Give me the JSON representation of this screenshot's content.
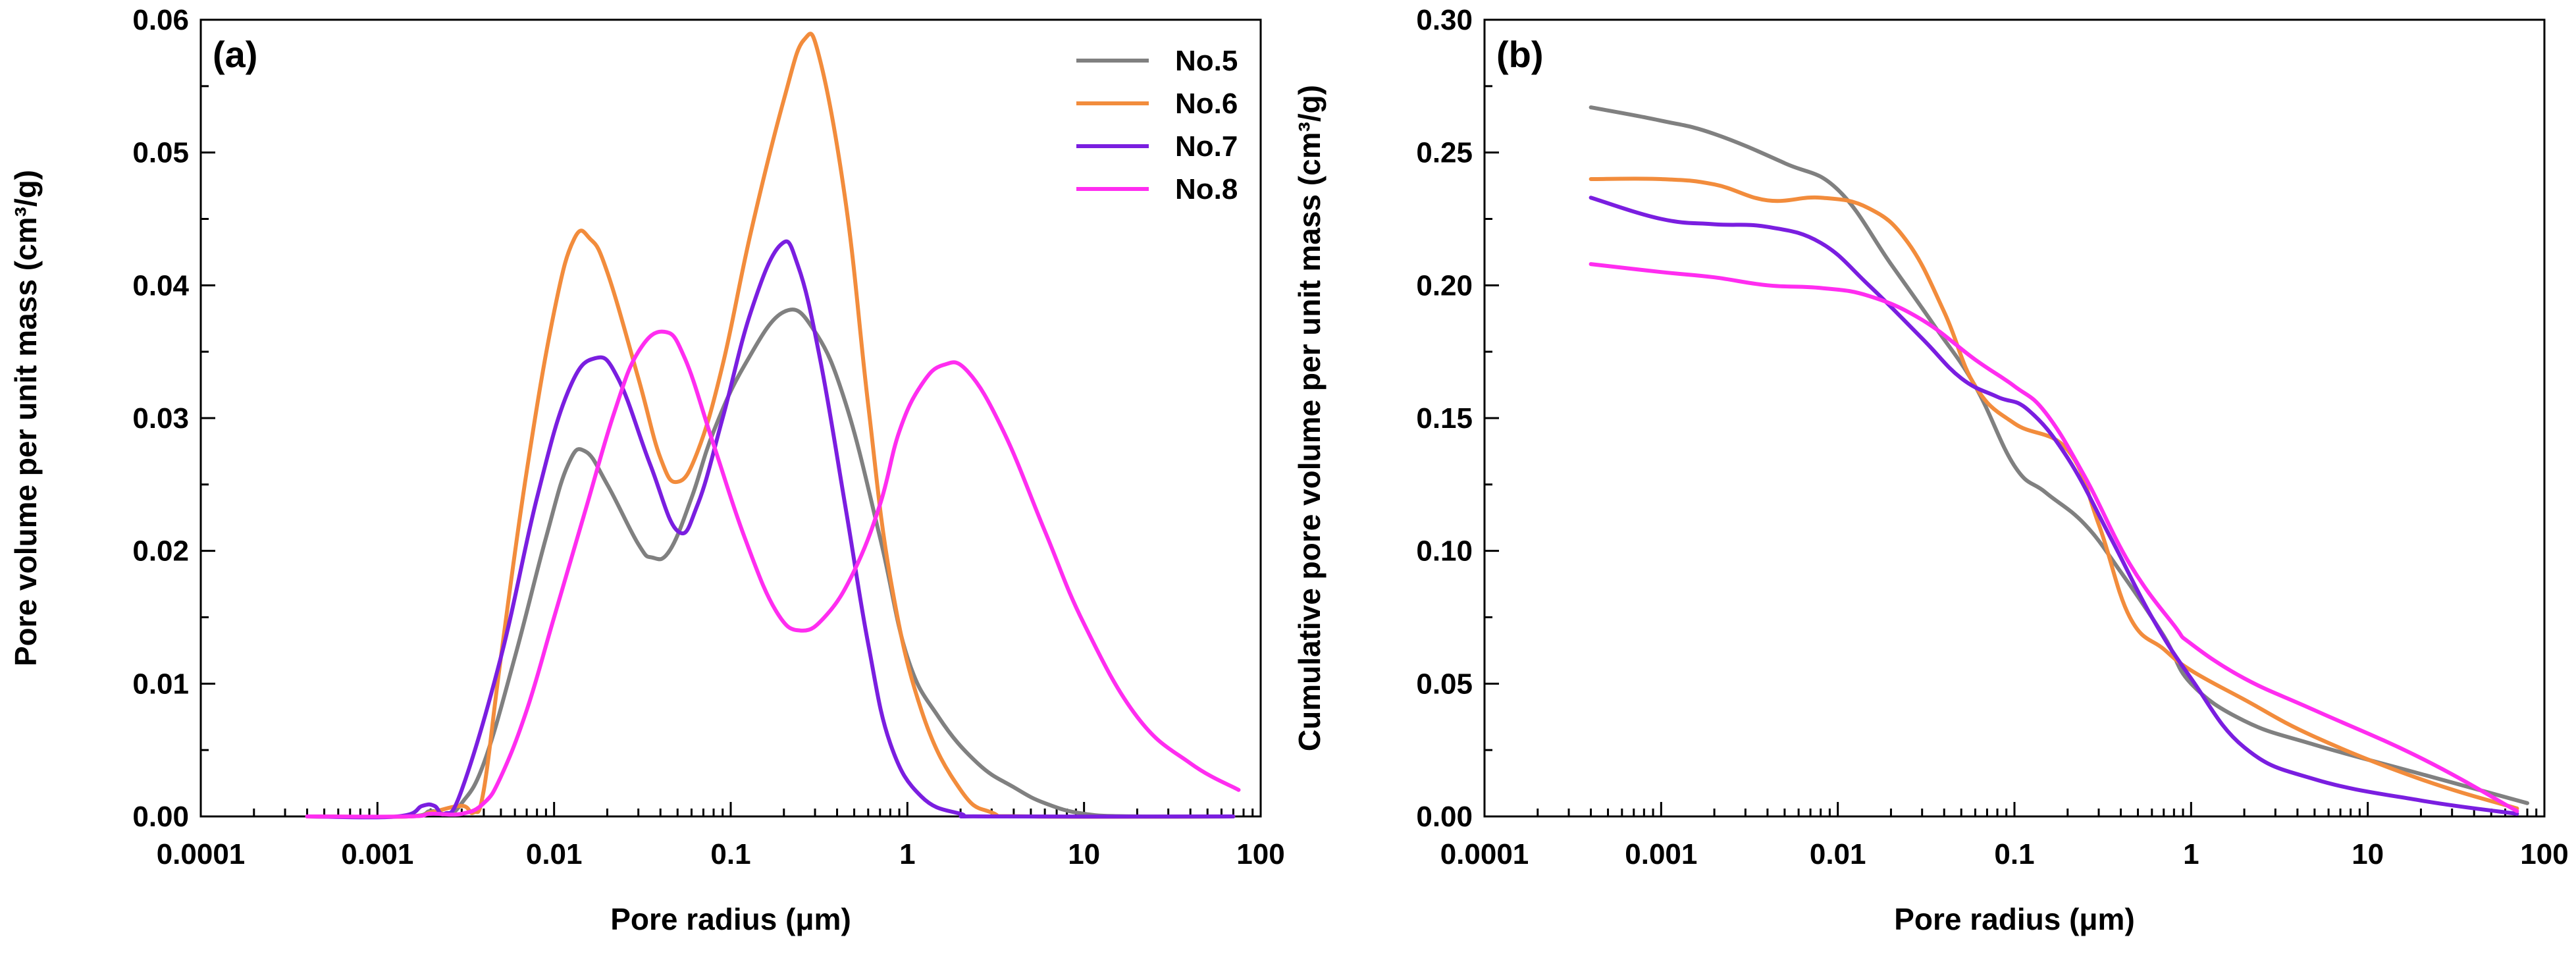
{
  "chart_data": [
    {
      "type": "line",
      "panel_label": "(a)",
      "title": "",
      "xlabel": "Pore radius (μm)",
      "ylabel": "Pore volume per unit mass (cm³/g)",
      "xscale": "log",
      "xlim": [
        0.0001,
        100
      ],
      "ylim": [
        0,
        0.06
      ],
      "x_ticks": [
        0.0001,
        0.001,
        0.01,
        0.1,
        1,
        10,
        100
      ],
      "x_tick_labels": [
        "0.0001",
        "0.001",
        "0.01",
        "0.1",
        "1",
        "10",
        "100"
      ],
      "y_ticks": [
        0,
        0.01,
        0.02,
        0.03,
        0.04,
        0.05,
        0.06
      ],
      "y_tick_labels": [
        "0.00",
        "0.01",
        "0.02",
        "0.03",
        "0.04",
        "0.05",
        "0.06"
      ],
      "legend": {
        "position": "top-right",
        "entries": [
          "No.5",
          "No.6",
          "No.7",
          "No.8"
        ]
      },
      "series": [
        {
          "name": "No.5",
          "color": "#808080",
          "points": [
            [
              0.0004,
              0
            ],
            [
              0.0015,
              0
            ],
            [
              0.002,
              0.0004
            ],
            [
              0.0025,
              0.0002
            ],
            [
              0.003,
              0.001
            ],
            [
              0.004,
              0.004
            ],
            [
              0.006,
              0.012
            ],
            [
              0.009,
              0.021
            ],
            [
              0.012,
              0.0265
            ],
            [
              0.015,
              0.0275
            ],
            [
              0.02,
              0.025
            ],
            [
              0.03,
              0.0205
            ],
            [
              0.036,
              0.0195
            ],
            [
              0.045,
              0.02
            ],
            [
              0.06,
              0.024
            ],
            [
              0.08,
              0.029
            ],
            [
              0.12,
              0.034
            ],
            [
              0.2,
              0.038
            ],
            [
              0.3,
              0.0365
            ],
            [
              0.45,
              0.031
            ],
            [
              0.7,
              0.021
            ],
            [
              1,
              0.012
            ],
            [
              1.5,
              0.0075
            ],
            [
              2.5,
              0.004
            ],
            [
              4,
              0.0022
            ],
            [
              6,
              0.001
            ],
            [
              10,
              0.0002
            ],
            [
              20,
              0
            ],
            [
              70,
              0
            ]
          ]
        },
        {
          "name": "No.6",
          "color": "#f28c3c",
          "points": [
            [
              0.0004,
              0
            ],
            [
              0.0015,
              0
            ],
            [
              0.002,
              0.0003
            ],
            [
              0.003,
              0.0008
            ],
            [
              0.0035,
              0.0003
            ],
            [
              0.004,
              0.002
            ],
            [
              0.005,
              0.012
            ],
            [
              0.007,
              0.026
            ],
            [
              0.01,
              0.038
            ],
            [
              0.013,
              0.0435
            ],
            [
              0.016,
              0.0435
            ],
            [
              0.02,
              0.041
            ],
            [
              0.03,
              0.033
            ],
            [
              0.04,
              0.027
            ],
            [
              0.05,
              0.0252
            ],
            [
              0.065,
              0.0275
            ],
            [
              0.09,
              0.034
            ],
            [
              0.13,
              0.044
            ],
            [
              0.2,
              0.054
            ],
            [
              0.26,
              0.0585
            ],
            [
              0.32,
              0.057
            ],
            [
              0.45,
              0.046
            ],
            [
              0.6,
              0.031
            ],
            [
              0.8,
              0.018
            ],
            [
              1.2,
              0.008
            ],
            [
              2,
              0.002
            ],
            [
              3,
              0.0003
            ],
            [
              5,
              0
            ],
            [
              70,
              0
            ]
          ]
        },
        {
          "name": "No.7",
          "color": "#7a1ee0",
          "points": [
            [
              0.0004,
              0
            ],
            [
              0.0013,
              0
            ],
            [
              0.0018,
              0.0008
            ],
            [
              0.0021,
              0.0008
            ],
            [
              0.0024,
              0.0002
            ],
            [
              0.003,
              0.002
            ],
            [
              0.005,
              0.012
            ],
            [
              0.008,
              0.024
            ],
            [
              0.012,
              0.032
            ],
            [
              0.017,
              0.0345
            ],
            [
              0.023,
              0.033
            ],
            [
              0.035,
              0.0265
            ],
            [
              0.05,
              0.0215
            ],
            [
              0.065,
              0.0235
            ],
            [
              0.09,
              0.03
            ],
            [
              0.13,
              0.038
            ],
            [
              0.19,
              0.043
            ],
            [
              0.24,
              0.0415
            ],
            [
              0.32,
              0.0345
            ],
            [
              0.45,
              0.023
            ],
            [
              0.6,
              0.013
            ],
            [
              0.8,
              0.0055
            ],
            [
              1.2,
              0.0015
            ],
            [
              2,
              0.0002
            ],
            [
              3,
              0
            ],
            [
              70,
              0
            ]
          ]
        },
        {
          "name": "No.8",
          "color": "#ff2df0",
          "points": [
            [
              0.0004,
              0
            ],
            [
              0.0015,
              0
            ],
            [
              0.002,
              0.0002
            ],
            [
              0.003,
              0.0002
            ],
            [
              0.004,
              0.001
            ],
            [
              0.005,
              0.003
            ],
            [
              0.007,
              0.008
            ],
            [
              0.01,
              0.015
            ],
            [
              0.015,
              0.023
            ],
            [
              0.022,
              0.0305
            ],
            [
              0.03,
              0.035
            ],
            [
              0.042,
              0.0365
            ],
            [
              0.055,
              0.0345
            ],
            [
              0.08,
              0.028
            ],
            [
              0.12,
              0.021
            ],
            [
              0.18,
              0.0155
            ],
            [
              0.25,
              0.014
            ],
            [
              0.35,
              0.0152
            ],
            [
              0.5,
              0.0185
            ],
            [
              0.7,
              0.0235
            ],
            [
              0.9,
              0.029
            ],
            [
              1.2,
              0.0325
            ],
            [
              1.6,
              0.034
            ],
            [
              2.2,
              0.0335
            ],
            [
              3.5,
              0.029
            ],
            [
              6,
              0.0215
            ],
            [
              10,
              0.0145
            ],
            [
              20,
              0.0075
            ],
            [
              40,
              0.004
            ],
            [
              75,
              0.002
            ]
          ]
        }
      ]
    },
    {
      "type": "line",
      "panel_label": "(b)",
      "title": "",
      "xlabel": "Pore radius (μm)",
      "ylabel": "Cumulative pore volume per unit mass (cm³/g)",
      "xscale": "log",
      "xlim": [
        0.0001,
        100
      ],
      "ylim": [
        0,
        0.3
      ],
      "x_ticks": [
        0.0001,
        0.001,
        0.01,
        0.1,
        1,
        10,
        100
      ],
      "x_tick_labels": [
        "0.0001",
        "0.001",
        "0.01",
        "0.1",
        "1",
        "10",
        "100"
      ],
      "y_ticks": [
        0,
        0.05,
        0.1,
        0.15,
        0.2,
        0.25,
        0.3
      ],
      "y_tick_labels": [
        "0.00",
        "0.05",
        "0.10",
        "0.15",
        "0.20",
        "0.25",
        "0.30"
      ],
      "series": [
        {
          "name": "No.5",
          "color": "#808080",
          "points": [
            [
              0.0004,
              0.267
            ],
            [
              0.001,
              0.262
            ],
            [
              0.002,
              0.257
            ],
            [
              0.005,
              0.246
            ],
            [
              0.01,
              0.236
            ],
            [
              0.02,
              0.208
            ],
            [
              0.035,
              0.185
            ],
            [
              0.06,
              0.162
            ],
            [
              0.1,
              0.132
            ],
            [
              0.15,
              0.122
            ],
            [
              0.25,
              0.11
            ],
            [
              0.4,
              0.092
            ],
            [
              0.7,
              0.068
            ],
            [
              1,
              0.05
            ],
            [
              2,
              0.036
            ],
            [
              5,
              0.027
            ],
            [
              20,
              0.016
            ],
            [
              80,
              0.005
            ]
          ]
        },
        {
          "name": "No.6",
          "color": "#f28c3c",
          "points": [
            [
              0.0004,
              0.24
            ],
            [
              0.001,
              0.24
            ],
            [
              0.002,
              0.238
            ],
            [
              0.004,
              0.232
            ],
            [
              0.008,
              0.233
            ],
            [
              0.015,
              0.229
            ],
            [
              0.025,
              0.216
            ],
            [
              0.04,
              0.19
            ],
            [
              0.06,
              0.162
            ],
            [
              0.1,
              0.148
            ],
            [
              0.2,
              0.138
            ],
            [
              0.3,
              0.11
            ],
            [
              0.45,
              0.075
            ],
            [
              0.7,
              0.063
            ],
            [
              1,
              0.055
            ],
            [
              2,
              0.044
            ],
            [
              5,
              0.03
            ],
            [
              20,
              0.014
            ],
            [
              70,
              0.003
            ]
          ]
        },
        {
          "name": "No.7",
          "color": "#7a1ee0",
          "points": [
            [
              0.0004,
              0.233
            ],
            [
              0.001,
              0.225
            ],
            [
              0.002,
              0.223
            ],
            [
              0.004,
              0.222
            ],
            [
              0.008,
              0.216
            ],
            [
              0.015,
              0.2
            ],
            [
              0.03,
              0.18
            ],
            [
              0.05,
              0.165
            ],
            [
              0.08,
              0.158
            ],
            [
              0.12,
              0.153
            ],
            [
              0.2,
              0.135
            ],
            [
              0.35,
              0.105
            ],
            [
              0.6,
              0.075
            ],
            [
              1,
              0.052
            ],
            [
              2,
              0.026
            ],
            [
              5,
              0.014
            ],
            [
              20,
              0.006
            ],
            [
              70,
              0.001
            ]
          ]
        },
        {
          "name": "No.8",
          "color": "#ff2df0",
          "points": [
            [
              0.0004,
              0.208
            ],
            [
              0.001,
              0.205
            ],
            [
              0.002,
              0.203
            ],
            [
              0.004,
              0.2
            ],
            [
              0.008,
              0.199
            ],
            [
              0.015,
              0.196
            ],
            [
              0.03,
              0.187
            ],
            [
              0.06,
              0.172
            ],
            [
              0.1,
              0.162
            ],
            [
              0.15,
              0.152
            ],
            [
              0.25,
              0.128
            ],
            [
              0.45,
              0.095
            ],
            [
              0.8,
              0.072
            ],
            [
              1,
              0.065
            ],
            [
              2,
              0.052
            ],
            [
              5,
              0.04
            ],
            [
              20,
              0.022
            ],
            [
              70,
              0.002
            ]
          ]
        }
      ]
    }
  ]
}
